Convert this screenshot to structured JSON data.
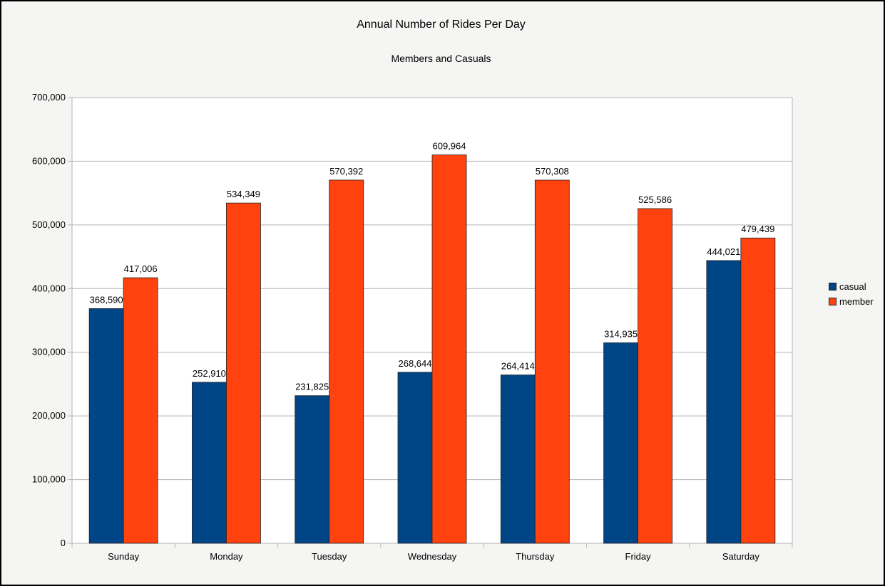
{
  "chart_data": {
    "type": "bar",
    "title": "Annual Number of Rides Per Day",
    "subtitle": "Members and Casuals",
    "xlabel": "",
    "ylabel": "",
    "categories": [
      "Sunday",
      "Monday",
      "Tuesday",
      "Wednesday",
      "Thursday",
      "Friday",
      "Saturday"
    ],
    "series": [
      {
        "name": "casual",
        "color": "#004586",
        "values": [
          368590,
          252910,
          231825,
          268644,
          264414,
          314935,
          444021
        ],
        "labels": [
          "368,590",
          "252,910",
          "231,825",
          "268,644",
          "264,414",
          "314,935",
          "444,021"
        ]
      },
      {
        "name": "member",
        "color": "#ff420e",
        "values": [
          417006,
          534349,
          570392,
          609964,
          570308,
          525586,
          479439
        ],
        "labels": [
          "417,006",
          "534,349",
          "570,392",
          "609,964",
          "570,308",
          "525,586",
          "479,439"
        ]
      }
    ],
    "ylim": [
      0,
      700000
    ],
    "yticks": [
      0,
      100000,
      200000,
      300000,
      400000,
      500000,
      600000,
      700000
    ],
    "ytick_labels": [
      "0",
      "100,000",
      "200,000",
      "300,000",
      "400,000",
      "500,000",
      "600,000",
      "700,000"
    ],
    "grid": true,
    "legend_position": "right"
  }
}
